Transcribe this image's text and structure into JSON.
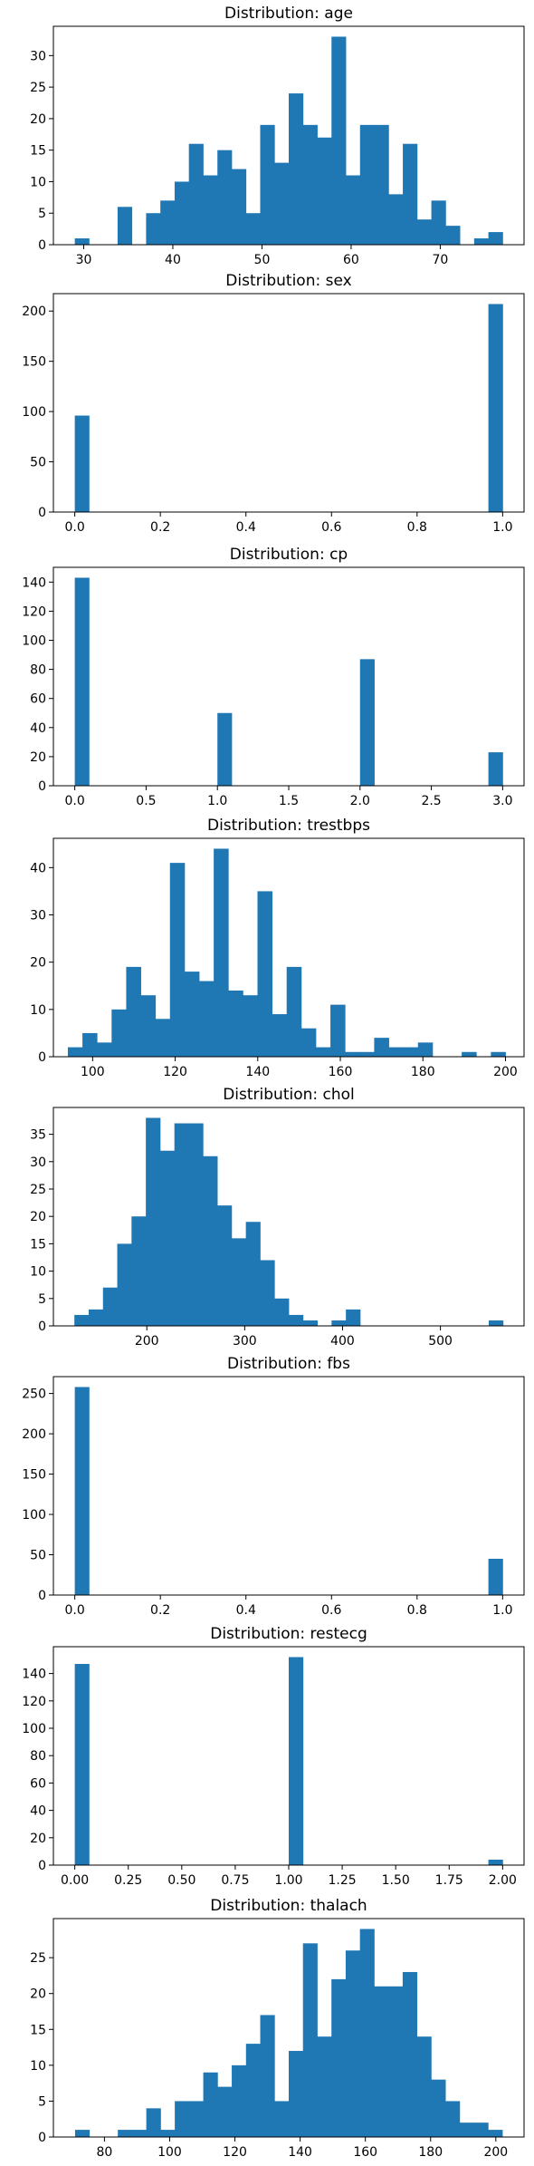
{
  "chart_data": [
    {
      "type": "bar",
      "title": "Distribution: age",
      "xlim": [
        26.6,
        79.4
      ],
      "ylim": [
        0,
        34.65
      ],
      "xticks": [
        30,
        40,
        50,
        60,
        70
      ],
      "yticks": [
        0,
        5,
        10,
        15,
        20,
        25,
        30
      ],
      "xticklabels": [
        "30",
        "40",
        "50",
        "60",
        "70"
      ],
      "bins": {
        "start": 29,
        "end": 77,
        "count": 30
      },
      "values": [
        1,
        0,
        0,
        6,
        0,
        5,
        7,
        10,
        16,
        11,
        15,
        12,
        5,
        19,
        13,
        24,
        19,
        17,
        33,
        11,
        19,
        19,
        8,
        16,
        4,
        7,
        3,
        0,
        1,
        2
      ]
    },
    {
      "type": "bar",
      "title": "Distribution: sex",
      "xlim": [
        -0.05,
        1.05
      ],
      "ylim": [
        0,
        217.35
      ],
      "xticks": [
        0,
        0.2,
        0.4,
        0.6,
        0.8,
        1.0
      ],
      "yticks": [
        0,
        50,
        100,
        150,
        200
      ],
      "xticklabels": [
        "0.0",
        "0.2",
        "0.4",
        "0.6",
        "0.8",
        "1.0"
      ],
      "bins": {
        "start": 0,
        "end": 1,
        "count": 30
      },
      "values": [
        96,
        0,
        0,
        0,
        0,
        0,
        0,
        0,
        0,
        0,
        0,
        0,
        0,
        0,
        0,
        0,
        0,
        0,
        0,
        0,
        0,
        0,
        0,
        0,
        0,
        0,
        0,
        0,
        0,
        207
      ]
    },
    {
      "type": "bar",
      "title": "Distribution: cp",
      "xlim": [
        -0.15,
        3.15
      ],
      "ylim": [
        0,
        150.15
      ],
      "xticks": [
        0,
        0.5,
        1.0,
        1.5,
        2.0,
        2.5,
        3.0
      ],
      "yticks": [
        0,
        20,
        40,
        60,
        80,
        100,
        120,
        140
      ],
      "xticklabels": [
        "0.0",
        "0.5",
        "1.0",
        "1.5",
        "2.0",
        "2.5",
        "3.0"
      ],
      "bins": {
        "start": 0,
        "end": 3,
        "count": 30
      },
      "values": [
        143,
        0,
        0,
        0,
        0,
        0,
        0,
        0,
        0,
        0,
        50,
        0,
        0,
        0,
        0,
        0,
        0,
        0,
        0,
        0,
        87,
        0,
        0,
        0,
        0,
        0,
        0,
        0,
        0,
        23
      ]
    },
    {
      "type": "bar",
      "title": "Distribution: trestbps",
      "xlim": [
        90.5,
        204.5
      ],
      "ylim": [
        0,
        46.2
      ],
      "xticks": [
        100,
        120,
        140,
        160,
        180,
        200
      ],
      "yticks": [
        0,
        10,
        20,
        30,
        40
      ],
      "xticklabels": [
        "100",
        "120",
        "140",
        "160",
        "180",
        "200"
      ],
      "bins": {
        "start": 94,
        "end": 200,
        "count": 30
      },
      "values": [
        2,
        5,
        3,
        10,
        19,
        13,
        8,
        41,
        18,
        16,
        44,
        14,
        13,
        35,
        9,
        19,
        6,
        2,
        11,
        1,
        1,
        4,
        2,
        2,
        3,
        0,
        0,
        1,
        0,
        1
      ]
    },
    {
      "type": "bar",
      "title": "Distribution: chol",
      "xlim": [
        104.55,
        585.45
      ],
      "ylim": [
        0,
        39.9
      ],
      "xticks": [
        200,
        300,
        400,
        500
      ],
      "yticks": [
        0,
        5,
        10,
        15,
        20,
        25,
        30,
        35
      ],
      "xticklabels": [
        "200",
        "300",
        "400",
        "500"
      ],
      "bins": {
        "start": 126,
        "end": 564,
        "count": 30
      },
      "values": [
        2,
        3,
        7,
        15,
        20,
        38,
        32,
        37,
        37,
        31,
        22,
        16,
        19,
        12,
        5,
        2,
        1,
        0,
        1,
        3,
        0,
        0,
        0,
        0,
        0,
        0,
        0,
        0,
        0,
        1
      ]
    },
    {
      "type": "bar",
      "title": "Distribution: fbs",
      "xlim": [
        -0.05,
        1.05
      ],
      "ylim": [
        0,
        270.9
      ],
      "xticks": [
        0,
        0.2,
        0.4,
        0.6,
        0.8,
        1.0
      ],
      "yticks": [
        0,
        50,
        100,
        150,
        200,
        250
      ],
      "xticklabels": [
        "0.0",
        "0.2",
        "0.4",
        "0.6",
        "0.8",
        "1.0"
      ],
      "bins": {
        "start": 0,
        "end": 1,
        "count": 30
      },
      "values": [
        258,
        0,
        0,
        0,
        0,
        0,
        0,
        0,
        0,
        0,
        0,
        0,
        0,
        0,
        0,
        0,
        0,
        0,
        0,
        0,
        0,
        0,
        0,
        0,
        0,
        0,
        0,
        0,
        0,
        45
      ]
    },
    {
      "type": "bar",
      "title": "Distribution: restecg",
      "xlim": [
        -0.1,
        2.1
      ],
      "ylim": [
        0,
        159.6
      ],
      "xticks": [
        0,
        0.25,
        0.5,
        0.75,
        1.0,
        1.25,
        1.5,
        1.75,
        2.0
      ],
      "yticks": [
        0,
        20,
        40,
        60,
        80,
        100,
        120,
        140
      ],
      "xticklabels": [
        "0.00",
        "0.25",
        "0.50",
        "0.75",
        "1.00",
        "1.25",
        "1.50",
        "1.75",
        "2.00"
      ],
      "bins": {
        "start": 0,
        "end": 2,
        "count": 30
      },
      "values": [
        147,
        0,
        0,
        0,
        0,
        0,
        0,
        0,
        0,
        0,
        0,
        0,
        0,
        0,
        0,
        152,
        0,
        0,
        0,
        0,
        0,
        0,
        0,
        0,
        0,
        0,
        0,
        0,
        0,
        4
      ]
    },
    {
      "type": "bar",
      "title": "Distribution: thalach",
      "xlim": [
        64.35,
        208.65
      ],
      "ylim": [
        0,
        30.45
      ],
      "xticks": [
        80,
        100,
        120,
        140,
        160,
        180,
        200
      ],
      "yticks": [
        0,
        5,
        10,
        15,
        20,
        25
      ],
      "xticklabels": [
        "80",
        "100",
        "120",
        "140",
        "160",
        "180",
        "200"
      ],
      "bins": {
        "start": 71,
        "end": 202,
        "count": 30
      },
      "values": [
        1,
        0,
        0,
        1,
        1,
        4,
        1,
        5,
        5,
        9,
        7,
        10,
        13,
        17,
        5,
        12,
        27,
        14,
        22,
        26,
        29,
        21,
        21,
        23,
        14,
        8,
        5,
        2,
        2,
        1
      ]
    }
  ]
}
